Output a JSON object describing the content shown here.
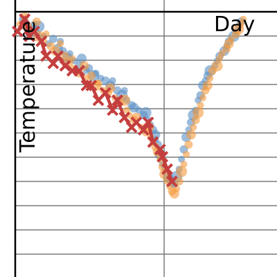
{
  "chart_data": {
    "type": "scatter",
    "xlabel": "Day",
    "ylabel": "Temperature",
    "grid": {
      "horizontal": true,
      "vertical": true
    },
    "legend": "none",
    "xlim": [
      0,
      100
    ],
    "ylim": [
      0,
      100
    ],
    "colors": {
      "blue": "#5a8fc4",
      "orange": "#f59a3c",
      "red": "#c43e3e",
      "axis": "#000000",
      "grid": "#7a7a7a"
    },
    "series": [
      {
        "marker": "circle",
        "color": "#5a8fc4",
        "points": [
          [
            3,
            97
          ],
          [
            4,
            96
          ],
          [
            6,
            93
          ],
          [
            8,
            95
          ],
          [
            9,
            91
          ],
          [
            10,
            94
          ],
          [
            12,
            90
          ],
          [
            14,
            87
          ],
          [
            16,
            89
          ],
          [
            18,
            85
          ],
          [
            19,
            88
          ],
          [
            20,
            84
          ],
          [
            22,
            81
          ],
          [
            23,
            83
          ],
          [
            25,
            80
          ],
          [
            27,
            78
          ],
          [
            28,
            81
          ],
          [
            30,
            76
          ],
          [
            31,
            77
          ],
          [
            33,
            74
          ],
          [
            34,
            75
          ],
          [
            36,
            73
          ],
          [
            38,
            72
          ],
          [
            40,
            70
          ],
          [
            41,
            72
          ],
          [
            43,
            68
          ],
          [
            45,
            66
          ],
          [
            46,
            68
          ],
          [
            47,
            64
          ],
          [
            49,
            62
          ],
          [
            50,
            61
          ],
          [
            52,
            60
          ],
          [
            54,
            58
          ],
          [
            55,
            59
          ],
          [
            56,
            56
          ],
          [
            57,
            54
          ],
          [
            58,
            52
          ],
          [
            59,
            50
          ],
          [
            59,
            48
          ],
          [
            60,
            46
          ],
          [
            61,
            42
          ],
          [
            62,
            38
          ],
          [
            63,
            36
          ],
          [
            64,
            33
          ],
          [
            65,
            32
          ],
          [
            66,
            30
          ],
          [
            67,
            30
          ],
          [
            68,
            33
          ],
          [
            69,
            36
          ],
          [
            70,
            40
          ],
          [
            71,
            44
          ],
          [
            72,
            49
          ],
          [
            73,
            52
          ],
          [
            74,
            55
          ],
          [
            75,
            58
          ],
          [
            76,
            60
          ],
          [
            77,
            64
          ],
          [
            78,
            66
          ],
          [
            79,
            70
          ],
          [
            80,
            72
          ],
          [
            81,
            74
          ],
          [
            82,
            76
          ],
          [
            84,
            78
          ],
          [
            85,
            80
          ],
          [
            86,
            82
          ],
          [
            88,
            84
          ],
          [
            89,
            86
          ],
          [
            90,
            88
          ],
          [
            92,
            90
          ],
          [
            93,
            92
          ],
          [
            94,
            94
          ],
          [
            95,
            96
          ]
        ]
      },
      {
        "marker": "circle",
        "color": "#f59a3c",
        "points": [
          [
            2,
            95
          ],
          [
            4,
            98
          ],
          [
            5,
            94
          ],
          [
            7,
            92
          ],
          [
            9,
            96
          ],
          [
            10,
            90
          ],
          [
            12,
            88
          ],
          [
            13,
            91
          ],
          [
            15,
            86
          ],
          [
            17,
            84
          ],
          [
            19,
            87
          ],
          [
            21,
            82
          ],
          [
            22,
            79
          ],
          [
            24,
            81
          ],
          [
            25,
            77
          ],
          [
            27,
            75
          ],
          [
            29,
            78
          ],
          [
            30,
            73
          ],
          [
            32,
            74
          ],
          [
            34,
            70
          ],
          [
            35,
            71
          ],
          [
            37,
            68
          ],
          [
            39,
            67
          ],
          [
            40,
            69
          ],
          [
            42,
            65
          ],
          [
            44,
            63
          ],
          [
            46,
            64
          ],
          [
            47,
            60
          ],
          [
            48,
            58
          ],
          [
            50,
            56
          ],
          [
            51,
            57
          ],
          [
            53,
            53
          ],
          [
            55,
            51
          ],
          [
            56,
            53
          ],
          [
            57,
            49
          ],
          [
            58,
            47
          ],
          [
            59,
            45
          ],
          [
            60,
            43
          ],
          [
            61,
            40
          ],
          [
            62,
            37
          ],
          [
            63,
            34
          ],
          [
            64,
            31
          ],
          [
            65,
            29
          ],
          [
            66,
            27
          ],
          [
            67,
            26
          ],
          [
            68,
            28
          ],
          [
            69,
            31
          ],
          [
            70,
            35
          ],
          [
            71,
            38
          ],
          [
            72,
            42
          ],
          [
            73,
            46
          ],
          [
            74,
            50
          ],
          [
            75,
            53
          ],
          [
            76,
            56
          ],
          [
            77,
            59
          ],
          [
            78,
            62
          ],
          [
            79,
            65
          ],
          [
            80,
            68
          ],
          [
            81,
            70
          ],
          [
            82,
            73
          ],
          [
            83,
            76
          ],
          [
            85,
            78
          ],
          [
            86,
            81
          ],
          [
            87,
            83
          ],
          [
            89,
            85
          ],
          [
            90,
            87
          ],
          [
            91,
            89
          ],
          [
            93,
            91
          ],
          [
            94,
            93
          ],
          [
            95,
            95
          ],
          [
            96,
            97
          ]
        ]
      },
      {
        "marker": "x-line",
        "color": "#c43e3e",
        "points": [
          [
            1,
            92
          ],
          [
            4,
            97
          ],
          [
            6,
            90
          ],
          [
            8,
            92
          ],
          [
            11,
            88
          ],
          [
            13,
            82
          ],
          [
            16,
            79
          ],
          [
            18,
            82
          ],
          [
            21,
            78
          ],
          [
            24,
            76
          ],
          [
            27,
            76
          ],
          [
            30,
            70
          ],
          [
            32,
            70
          ],
          [
            35,
            64
          ],
          [
            38,
            67
          ],
          [
            41,
            60
          ],
          [
            43,
            64
          ],
          [
            46,
            57
          ],
          [
            49,
            53
          ],
          [
            51,
            55
          ],
          [
            54,
            52
          ],
          [
            56,
            55
          ],
          [
            58,
            47
          ],
          [
            61,
            44
          ],
          [
            62,
            41
          ],
          [
            64,
            36
          ],
          [
            66,
            31
          ]
        ]
      }
    ]
  }
}
